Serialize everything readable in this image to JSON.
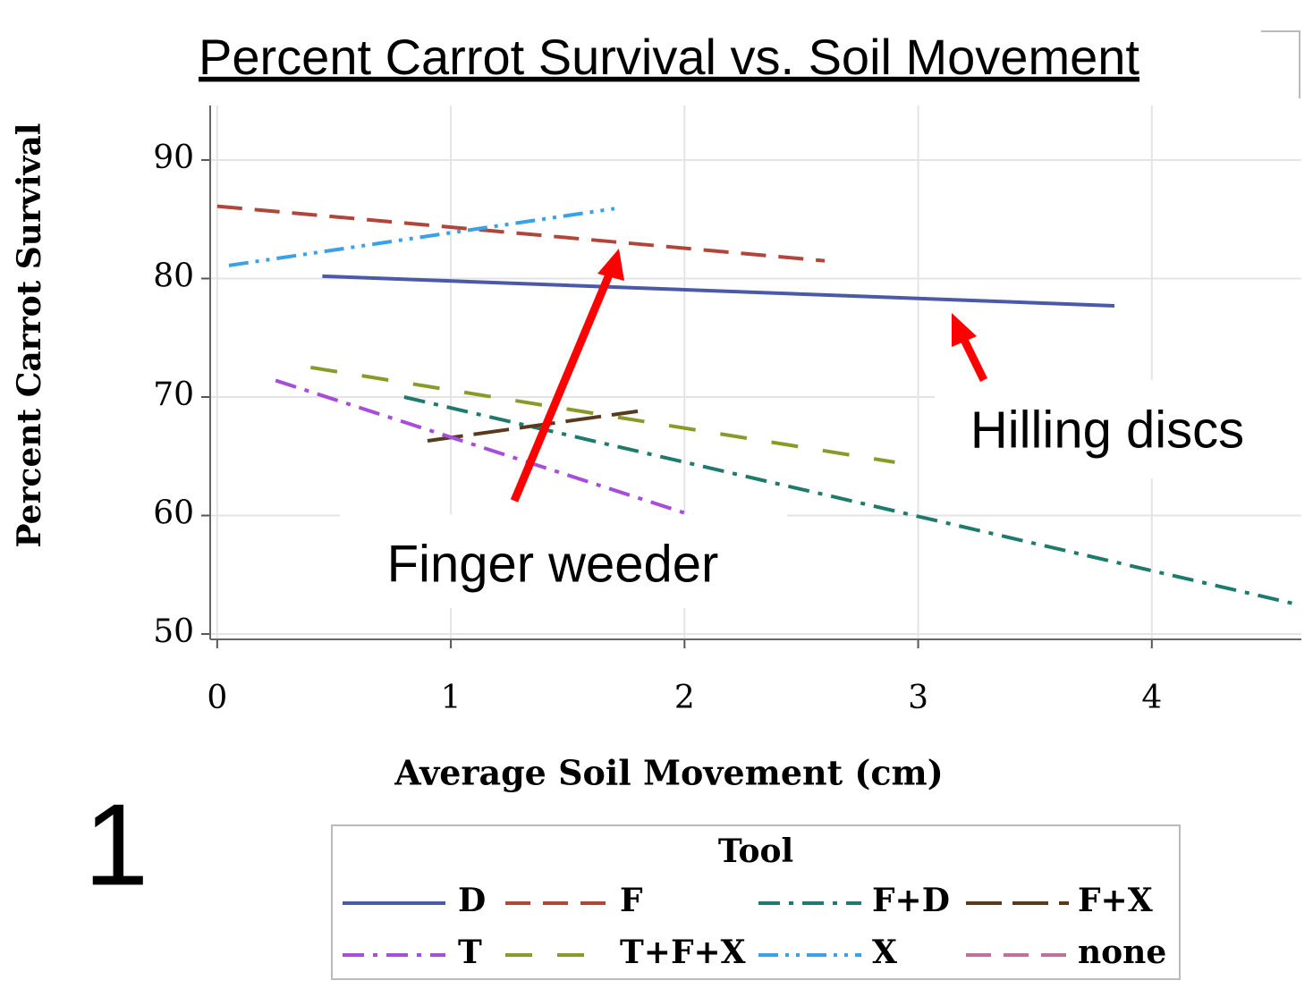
{
  "chart_data": {
    "type": "line",
    "title": "Percent Carrot Survival vs. Soil Movement",
    "x_label": "Average Soil Movement (cm)",
    "y_label": "Percent Carrot Survival",
    "legend_title": "Tool",
    "legend": "bottom",
    "grid": true,
    "xlim": [
      -0.03,
      4.64
    ],
    "ylim": [
      49.55,
      94.6
    ],
    "xticks": [
      0,
      1,
      2,
      3,
      4
    ],
    "yticks": [
      50,
      60,
      70,
      80,
      90
    ],
    "series": [
      {
        "name": "D",
        "color": "#4a5aa8",
        "dash": "solid",
        "x": [
          0.45,
          3.84
        ],
        "values": [
          80.2,
          77.7
        ]
      },
      {
        "name": "F",
        "color": "#b0453a",
        "dash": "dash",
        "x": [
          0,
          2.6
        ],
        "values": [
          86.1,
          81.5
        ]
      },
      {
        "name": "F+D",
        "color": "#1f7a6e",
        "dash": "dashdot",
        "x": [
          0.8,
          4.6
        ],
        "values": [
          70,
          52.6
        ]
      },
      {
        "name": "F+X",
        "color": "#5a3a1e",
        "dash": "longdash",
        "x": [
          0.9,
          1.8
        ],
        "values": [
          66.3,
          68.8
        ]
      },
      {
        "name": "T",
        "color": "#a64ddb",
        "dash": "dashdot",
        "x": [
          0.25,
          2.05
        ],
        "values": [
          71.4,
          59.9
        ]
      },
      {
        "name": "T+F+X",
        "color": "#8a9a2a",
        "dash": "longgap",
        "x": [
          0.4,
          2.9
        ],
        "values": [
          72.5,
          64.5
        ]
      },
      {
        "name": "X",
        "color": "#3aa0e8",
        "dash": "dashdotdot",
        "x": [
          0.05,
          1.7
        ],
        "values": [
          81.1,
          85.9
        ]
      },
      {
        "name": "none",
        "color": "#c0709a",
        "dash": "dash",
        "x": [],
        "values": []
      }
    ],
    "annotations": [
      "Finger weeder",
      "Hilling discs"
    ],
    "panel_number": "1"
  }
}
